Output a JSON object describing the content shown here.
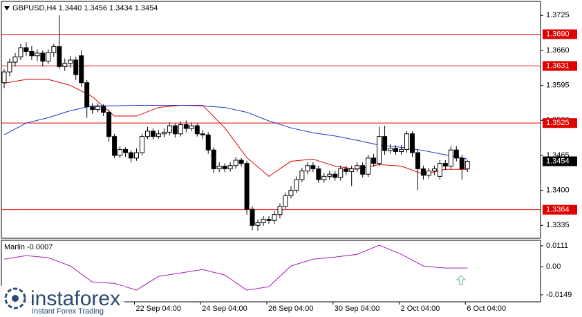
{
  "chart_data": [
    {
      "type": "candlestick",
      "title": "GBPUSD,H4  1.3440 1.3456 1.3434 1.3454",
      "up_color": "#ffffff",
      "down_color": "#000000",
      "xlim": [
        -0.5,
        97.25
      ],
      "xticks": [
        {
          "value": 24,
          "label": "22 Sep 04:00"
        },
        {
          "value": 36,
          "label": "24 Sep 04:00"
        },
        {
          "value": 48,
          "label": "26 Sep 04:00"
        },
        {
          "value": 60,
          "label": "30 Sep 04:00"
        },
        {
          "value": 72,
          "label": "2 Oct 04:00"
        },
        {
          "value": 84,
          "label": "6 Oct 04:00"
        }
      ],
      "ylim": [
        1.3311,
        1.3751
      ],
      "yticks": [
        1.3725,
        {
          "value": 1.366,
          "label": "1.3660"
        },
        1.3595,
        {
          "value": 1.353,
          "label": "1.3530"
        },
        1.3465,
        {
          "value": 1.34,
          "label": "1.3400"
        },
        1.3335
      ],
      "open": [
        1.36,
        1.362,
        1.3638,
        1.3648,
        1.3665,
        1.3658,
        1.365,
        1.3655,
        1.364,
        1.3656,
        1.3667,
        1.363,
        1.3636,
        1.3642,
        1.365,
        1.36,
        1.3555,
        1.355,
        1.3556,
        1.3545,
        1.35,
        1.3465,
        1.3476,
        1.347,
        1.346,
        1.347,
        1.35,
        1.351,
        1.35,
        1.3505,
        1.3508,
        1.352,
        1.3505,
        1.3522,
        1.3515,
        1.352,
        1.3505,
        1.3503,
        1.3475,
        1.344,
        1.3445,
        1.344,
        1.3446,
        1.3456,
        1.345,
        1.3365,
        1.3335,
        1.334,
        1.3346,
        1.3344,
        1.3355,
        1.337,
        1.339,
        1.34,
        1.342,
        1.3436,
        1.3446,
        1.344,
        1.342,
        1.3426,
        1.343,
        1.3424,
        1.344,
        1.3435,
        1.344,
        1.3446,
        1.343,
        1.346,
        1.345,
        1.35,
        1.3474,
        1.3478,
        1.3472,
        1.3476,
        1.3505,
        1.347,
        1.344,
        1.3428,
        1.3436,
        1.3426,
        1.345,
        1.3445,
        1.3475,
        1.346,
        1.344
      ],
      "high": [
        1.3625,
        1.3645,
        1.3655,
        1.3672,
        1.3675,
        1.3668,
        1.3662,
        1.366,
        1.3662,
        1.3672,
        1.3725,
        1.3645,
        1.365,
        1.3648,
        1.366,
        1.3605,
        1.3562,
        1.3562,
        1.356,
        1.355,
        1.3505,
        1.3482,
        1.348,
        1.3475,
        1.3478,
        1.3505,
        1.3518,
        1.3515,
        1.3512,
        1.3515,
        1.3526,
        1.3524,
        1.3528,
        1.353,
        1.3526,
        1.3524,
        1.3512,
        1.3508,
        1.348,
        1.3452,
        1.345,
        1.3452,
        1.3462,
        1.346,
        1.3455,
        1.337,
        1.3346,
        1.3352,
        1.3352,
        1.3362,
        1.3376,
        1.3396,
        1.3408,
        1.3426,
        1.3442,
        1.3452,
        1.3452,
        1.3446,
        1.3432,
        1.3436,
        1.3436,
        1.3446,
        1.3446,
        1.3446,
        1.3452,
        1.3452,
        1.3466,
        1.3468,
        1.3518,
        1.352,
        1.3486,
        1.3484,
        1.3484,
        1.351,
        1.351,
        1.3476,
        1.3446,
        1.3442,
        1.3446,
        1.3456,
        1.3456,
        1.3482,
        1.3482,
        1.3466,
        1.3456
      ],
      "low": [
        1.359,
        1.3612,
        1.363,
        1.3642,
        1.365,
        1.3642,
        1.364,
        1.363,
        1.3635,
        1.3648,
        1.3625,
        1.3622,
        1.3628,
        1.3605,
        1.3592,
        1.3535,
        1.3542,
        1.3545,
        1.3538,
        1.349,
        1.346,
        1.346,
        1.3462,
        1.3452,
        1.3455,
        1.3465,
        1.3495,
        1.3494,
        1.3496,
        1.3498,
        1.3502,
        1.3498,
        1.35,
        1.3508,
        1.351,
        1.35,
        1.3496,
        1.3468,
        1.3432,
        1.3434,
        1.3434,
        1.3435,
        1.344,
        1.3444,
        1.3355,
        1.3326,
        1.3325,
        1.3334,
        1.3338,
        1.3338,
        1.3348,
        1.3365,
        1.3385,
        1.3395,
        1.3415,
        1.343,
        1.3434,
        1.3414,
        1.3414,
        1.342,
        1.3418,
        1.3418,
        1.3428,
        1.3408,
        1.3434,
        1.3424,
        1.3425,
        1.3444,
        1.3445,
        1.3466,
        1.3468,
        1.3466,
        1.3466,
        1.347,
        1.3462,
        1.34,
        1.342,
        1.3422,
        1.3428,
        1.342,
        1.3438,
        1.344,
        1.3454,
        1.342,
        1.3434
      ],
      "close": [
        1.362,
        1.3638,
        1.3648,
        1.3665,
        1.3658,
        1.365,
        1.3655,
        1.364,
        1.3656,
        1.3667,
        1.363,
        1.3636,
        1.3642,
        1.3615,
        1.36,
        1.3555,
        1.355,
        1.3556,
        1.3545,
        1.35,
        1.3465,
        1.3476,
        1.347,
        1.346,
        1.347,
        1.35,
        1.351,
        1.35,
        1.3505,
        1.3508,
        1.352,
        1.3505,
        1.3522,
        1.3515,
        1.352,
        1.3505,
        1.3503,
        1.3475,
        1.344,
        1.3445,
        1.344,
        1.3446,
        1.3456,
        1.345,
        1.3365,
        1.3335,
        1.334,
        1.3346,
        1.3344,
        1.3355,
        1.337,
        1.339,
        1.34,
        1.342,
        1.3436,
        1.3446,
        1.344,
        1.342,
        1.3426,
        1.343,
        1.3424,
        1.344,
        1.3435,
        1.344,
        1.3446,
        1.343,
        1.346,
        1.345,
        1.35,
        1.3474,
        1.3478,
        1.3472,
        1.3476,
        1.3505,
        1.347,
        1.344,
        1.3428,
        1.3436,
        1.344,
        1.345,
        1.3445,
        1.3475,
        1.346,
        1.344,
        1.3454
      ],
      "overlays": [
        {
          "color": "#e00000",
          "x": [
            0,
            4,
            8,
            12,
            16,
            20,
            24,
            28,
            32,
            36,
            40,
            44,
            48,
            52,
            56,
            60,
            64,
            68,
            72,
            76,
            80,
            84
          ],
          "values": [
            1.3599,
            1.3606,
            1.3606,
            1.3595,
            1.3574,
            1.3538,
            1.3538,
            1.3554,
            1.3558,
            1.3558,
            1.3516,
            1.3461,
            1.3426,
            1.3454,
            1.3458,
            1.3445,
            1.3439,
            1.3448,
            1.3445,
            1.343,
            1.3439,
            1.3439
          ]
        },
        {
          "color": "#1a2fd0",
          "x": [
            0,
            4,
            8,
            12,
            16,
            20,
            24,
            28,
            32,
            36,
            40,
            44,
            48,
            52,
            56,
            60,
            64,
            68,
            72,
            76,
            80,
            84
          ],
          "values": [
            1.3503,
            1.3525,
            1.3535,
            1.3548,
            1.3557,
            1.3557,
            1.3558,
            1.3558,
            1.3558,
            1.3557,
            1.3554,
            1.3545,
            1.3529,
            1.3516,
            1.3507,
            1.3501,
            1.3493,
            1.3484,
            1.348,
            1.3474,
            1.3466,
            1.3458
          ]
        }
      ],
      "levels": [
        {
          "value": 1.369,
          "label": "1.3690"
        },
        {
          "value": 1.3631,
          "label": "1.3631"
        },
        {
          "value": 1.3525,
          "label": "1.3525"
        },
        {
          "value": 1.3364,
          "label": "1.3364"
        }
      ],
      "level_color": "#e00000",
      "last_price": {
        "value": 1.3454,
        "label": "1.3454"
      }
    },
    {
      "type": "line",
      "title": "Marlin -0.0007",
      "color": "#a020b0",
      "xlim": [
        -0.5,
        97.25
      ],
      "ylim": [
        -0.0186,
        0.014
      ],
      "yticks": [
        0.0111,
        {
          "value": 0,
          "label": "0.00"
        },
        -0.0149
      ],
      "x": [
        0,
        4,
        8,
        12,
        16,
        20,
        24,
        28,
        32,
        36,
        40,
        44,
        48,
        52,
        56,
        60,
        64,
        68,
        72,
        76,
        80,
        84
      ],
      "values": [
        0.004,
        0.0059,
        0.0048,
        0.0004,
        -0.0081,
        -0.0088,
        -0.0124,
        -0.0051,
        -0.0033,
        -0.0015,
        -0.0044,
        -0.0124,
        -0.0106,
        0.0004,
        0.004,
        0.0051,
        0.0066,
        0.0114,
        0.0066,
        0.0004,
        -0.0007,
        -0.0007
      ]
    }
  ],
  "watermark": {
    "brand": "instaforex",
    "tagline": "Instant Forex Trading"
  }
}
